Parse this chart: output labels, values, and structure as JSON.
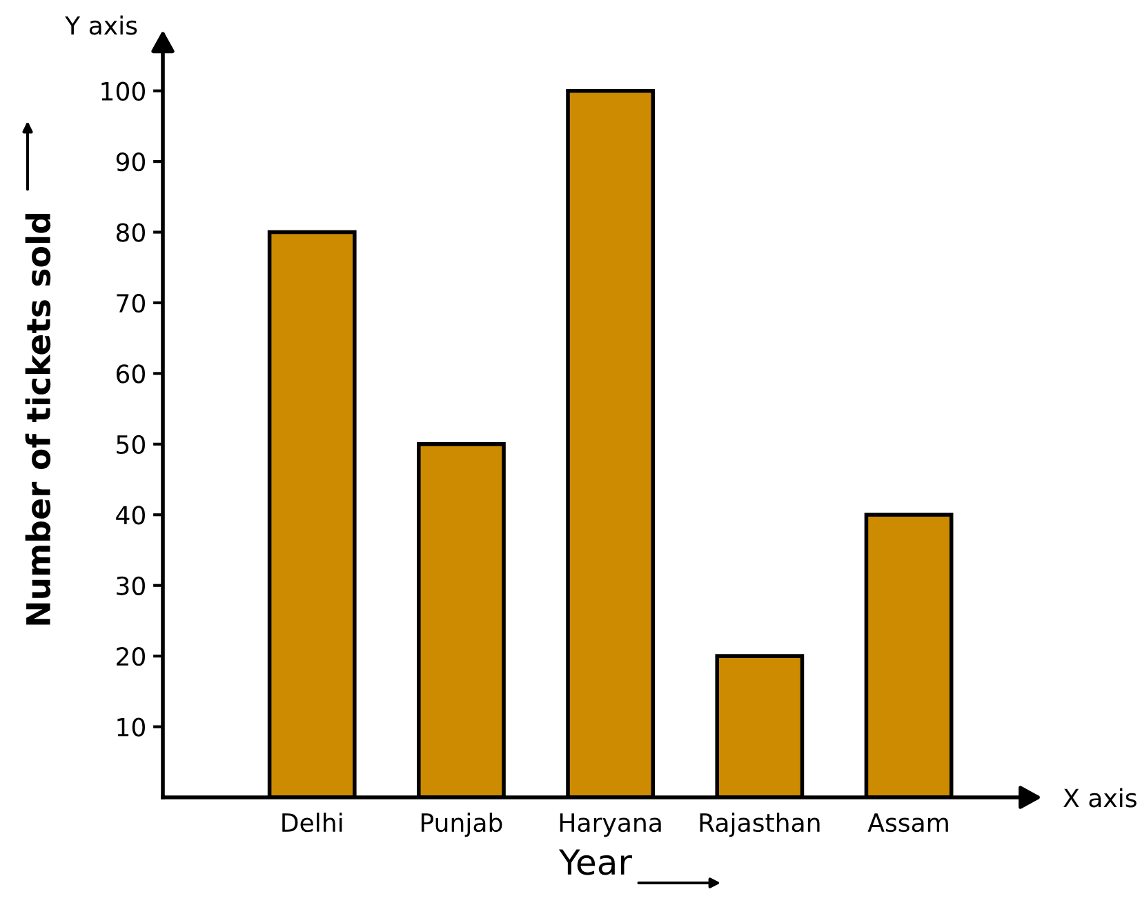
{
  "chart_data": {
    "type": "bar",
    "xlabel": "Year",
    "ylabel": "Number of tickets sold",
    "categories": [
      "Delhi",
      "Punjab",
      "Haryana",
      "Rajasthan",
      "Assam"
    ],
    "values": [
      80,
      50,
      100,
      20,
      40
    ],
    "color": "#cc8b00",
    "ylim": [
      0,
      107
    ],
    "yticks": [
      10,
      20,
      30,
      40,
      50,
      60,
      70,
      80,
      90,
      100
    ],
    "grid": false,
    "annotations": [
      "Y axis",
      "X axis"
    ]
  }
}
